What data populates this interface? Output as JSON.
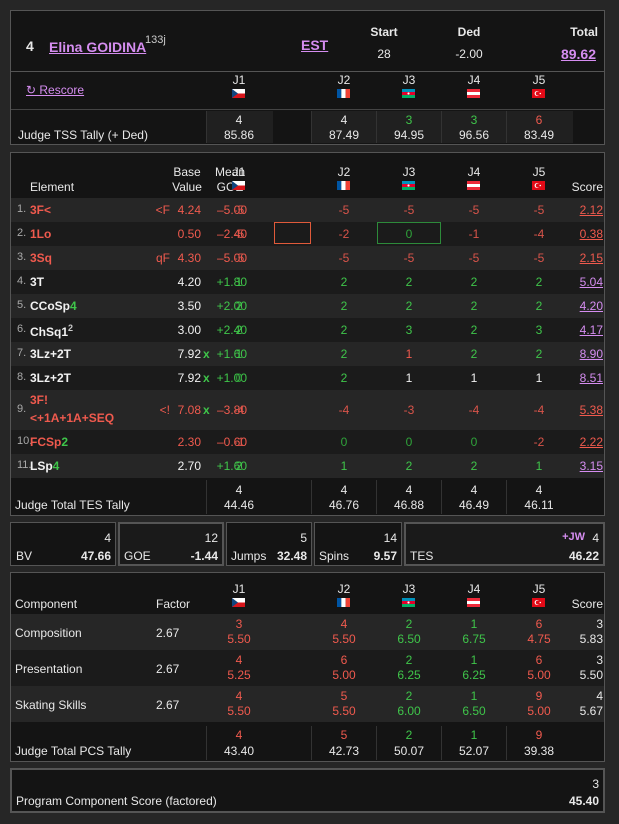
{
  "skater": {
    "rank": "4",
    "name": "Elina GOIDINA",
    "sup": "133j",
    "nation": "EST",
    "start_label": "Start",
    "start": "28",
    "ded_label": "Ded",
    "ded": "-2.00",
    "total_label": "Total",
    "total": "89.62"
  },
  "rescore_label": "↻ Rescore",
  "judges": [
    "J1",
    "J2",
    "J3",
    "J4",
    "J5"
  ],
  "tss": {
    "label": "Judge TSS Tally (+ Ded)",
    "ranks": [
      "4",
      "4",
      "3",
      "3",
      "6"
    ],
    "values": [
      "85.86",
      "87.49",
      "94.95",
      "96.56",
      "83.49"
    ]
  },
  "elements": {
    "headers": {
      "element": "Element",
      "base1": "Base",
      "base2": "Value",
      "goe1": "Mean",
      "goe2": "GOE",
      "score": "Score"
    },
    "rows": [
      {
        "num": "1.",
        "name": "3F<",
        "flag": "<F",
        "base": "4.24",
        "goe": "–5.00",
        "j": [
          "-5",
          "-5",
          "-5",
          "-5",
          "-5"
        ],
        "score": "2.12",
        "color": "red"
      },
      {
        "num": "2.",
        "name": "1Lo",
        "flag": "",
        "base": "0.50",
        "goe": "–2.40",
        "j": [
          "-5",
          "-2",
          "0",
          "-1",
          "-4"
        ],
        "score": "0.38",
        "color": "red"
      },
      {
        "num": "3.",
        "name": "3Sq",
        "flag": "qF",
        "base": "4.30",
        "goe": "–5.00",
        "j": [
          "-5",
          "-5",
          "-5",
          "-5",
          "-5"
        ],
        "score": "2.15",
        "color": "red"
      },
      {
        "num": "4.",
        "name": "3T",
        "flag": "",
        "base": "4.20",
        "goe": "+1.80",
        "j": [
          "1",
          "2",
          "2",
          "2",
          "2"
        ],
        "score": "5.04",
        "color": "white"
      },
      {
        "num": "5.",
        "name": "CCoSp",
        "lvl": "4",
        "flag": "",
        "base": "3.50",
        "goe": "+2.00",
        "j": [
          "2",
          "2",
          "2",
          "2",
          "2"
        ],
        "score": "4.20",
        "color": "white"
      },
      {
        "num": "6.",
        "name": "ChSq1",
        "sup": "2",
        "flag": "",
        "base": "3.00",
        "goe": "+2.40",
        "j": [
          "2",
          "2",
          "3",
          "2",
          "3"
        ],
        "score": "4.17",
        "color": "white"
      },
      {
        "num": "7.",
        "name": "3Lz+2T",
        "flag": "",
        "base": "7.92",
        "x": "x",
        "goe": "+1.60",
        "j": [
          "1",
          "2",
          "1",
          "2",
          "2"
        ],
        "score": "8.90",
        "color": "white"
      },
      {
        "num": "8.",
        "name": "3Lz+2T",
        "flag": "",
        "base": "7.92",
        "x": "x",
        "goe": "+1.00",
        "j": [
          "0",
          "2",
          "1",
          "1",
          "1"
        ],
        "score": "8.51",
        "color": "white"
      },
      {
        "num": "9.",
        "name": "3F!",
        "name2": "<+1A+1A+SEQ",
        "flag": "<!",
        "base": "7.08",
        "x": "x",
        "goe": "–3.80",
        "j": [
          "-4",
          "-4",
          "-3",
          "-4",
          "-4"
        ],
        "score": "5.38",
        "color": "red"
      },
      {
        "num": "10.",
        "name": "FCSp",
        "lvl": "2",
        "flag": "",
        "base": "2.30",
        "goe": "–0.60",
        "j": [
          "-1",
          "0",
          "0",
          "0",
          "-2"
        ],
        "score": "2.22",
        "color": "red"
      },
      {
        "num": "11.",
        "name": "LSp",
        "lvl": "4",
        "flag": "",
        "base": "2.70",
        "goe": "+1.60",
        "j": [
          "2",
          "1",
          "2",
          "2",
          "1"
        ],
        "score": "3.15",
        "color": "white"
      }
    ],
    "tes_tally": {
      "label": "Judge Total TES Tally",
      "ranks": [
        "4",
        "4",
        "4",
        "4",
        "4"
      ],
      "values": [
        "44.46",
        "46.76",
        "46.88",
        "46.49",
        "46.11"
      ]
    }
  },
  "summary": {
    "bv": {
      "label": "BV",
      "rank": "4",
      "value": "47.66"
    },
    "goe": {
      "label": "GOE",
      "rank": "12",
      "value": "-1.44"
    },
    "jumps": {
      "label": "Jumps",
      "rank": "5",
      "value": "32.48"
    },
    "spins": {
      "label": "Spins",
      "rank": "14",
      "value": "9.57"
    },
    "tes": {
      "label": "TES",
      "tag": "+JW",
      "rank": "4",
      "value": "46.22"
    }
  },
  "pcs": {
    "headers": {
      "component": "Component",
      "factor": "Factor",
      "score": "Score"
    },
    "rows": [
      {
        "name": "Composition",
        "factor": "2.67",
        "ranks": [
          "3",
          "4",
          "2",
          "1",
          "6"
        ],
        "marks": [
          "5.50",
          "5.50",
          "6.50",
          "6.75",
          "4.75"
        ],
        "score_rank": "3",
        "score": "5.83"
      },
      {
        "name": "Presentation",
        "factor": "2.67",
        "ranks": [
          "4",
          "6",
          "2",
          "1",
          "6"
        ],
        "marks": [
          "5.25",
          "5.00",
          "6.25",
          "6.25",
          "5.00"
        ],
        "score_rank": "3",
        "score": "5.50"
      },
      {
        "name": "Skating Skills",
        "factor": "2.67",
        "ranks": [
          "4",
          "5",
          "2",
          "1",
          "9"
        ],
        "marks": [
          "5.50",
          "5.50",
          "6.00",
          "6.50",
          "5.00"
        ],
        "score_rank": "4",
        "score": "5.67"
      }
    ],
    "tally": {
      "label": "Judge Total PCS Tally",
      "ranks": [
        "4",
        "5",
        "2",
        "1",
        "9"
      ],
      "values": [
        "43.40",
        "42.73",
        "50.07",
        "52.07",
        "39.38"
      ]
    }
  },
  "pcs_total": {
    "label": "Program Component Score (factored)",
    "rank": "3",
    "value": "45.40"
  }
}
